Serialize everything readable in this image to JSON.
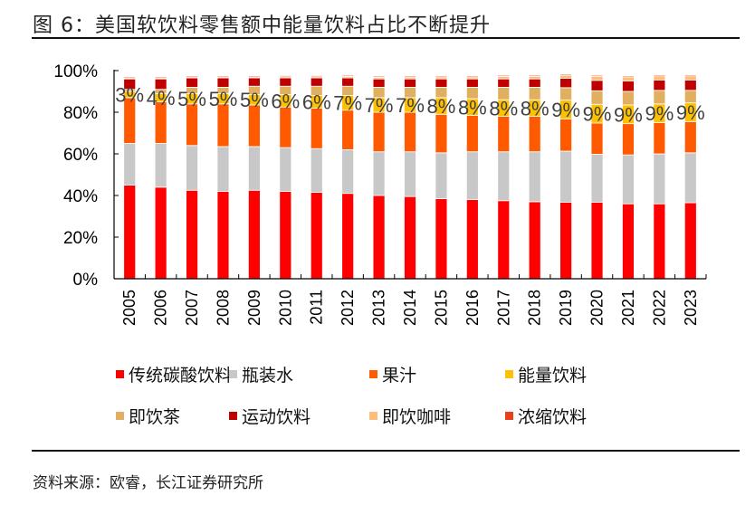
{
  "figure": {
    "title": "图 6：美国软饮料零售额中能量饮料占比不断提升",
    "source": "资料来源：欧睿，长江证券研究所"
  },
  "chart_data": {
    "type": "bar",
    "stacked": true,
    "title": "图 6：美国软饮料零售额中能量饮料占比不断提升",
    "xlabel": "",
    "ylabel": "",
    "ylim": [
      0,
      100
    ],
    "yticks": [
      "0%",
      "20%",
      "40%",
      "60%",
      "80%",
      "100%"
    ],
    "grid": false,
    "legend_position": "bottom",
    "categories": [
      "2005",
      "2006",
      "2007",
      "2008",
      "2009",
      "2010",
      "2011",
      "2012",
      "2013",
      "2014",
      "2015",
      "2016",
      "2017",
      "2018",
      "2019",
      "2020",
      "2021",
      "2022",
      "2023"
    ],
    "series": [
      {
        "name": "传统碳酸饮料",
        "color": "#FF0000",
        "values": [
          45,
          44,
          42.5,
          42,
          42.5,
          42,
          41.5,
          41,
          40,
          39.5,
          38.5,
          38,
          37.5,
          37,
          36.8,
          36.8,
          36,
          36,
          36.5
        ]
      },
      {
        "name": "瓶装水",
        "color": "#C8C8C8",
        "values": [
          20,
          21,
          21.5,
          21.5,
          21,
          21,
          21,
          21,
          21,
          21.5,
          22,
          23,
          23.5,
          24,
          24.5,
          23,
          23.5,
          24,
          24
        ]
      },
      {
        "name": "果汁",
        "color": "#FF5A00",
        "values": [
          22,
          20,
          20,
          20.5,
          20,
          19.5,
          19.5,
          19,
          19,
          19,
          18.5,
          17.5,
          17,
          17,
          15.5,
          15,
          15,
          15,
          15
        ]
      },
      {
        "name": "能量饮料",
        "color": "#FFC000",
        "values": [
          3,
          4,
          5,
          5,
          5,
          6,
          6,
          7,
          7,
          7,
          8,
          8,
          8,
          8,
          9,
          9,
          9,
          9,
          9
        ]
      },
      {
        "name": "即饮茶",
        "color": "#E0B060",
        "values": [
          1,
          2,
          3,
          3,
          4,
          4,
          4.5,
          4.5,
          5,
          5,
          5,
          5.5,
          6,
          6,
          6,
          6.5,
          6.5,
          6.5,
          6
        ]
      },
      {
        "name": "运动饮料",
        "color": "#C00000",
        "values": [
          5,
          5,
          4.5,
          4.5,
          4,
          4,
          4,
          4,
          4,
          4,
          4,
          4,
          4,
          4,
          4.5,
          5,
          5,
          5,
          5
        ]
      },
      {
        "name": "即饮咖啡",
        "color": "#FFBE78",
        "values": [
          0.5,
          0.5,
          0.5,
          0.5,
          0.5,
          0.6,
          0.6,
          0.7,
          0.8,
          0.9,
          1,
          1,
          1.2,
          1.3,
          1.5,
          2,
          2,
          2,
          2
        ]
      },
      {
        "name": "浓缩饮料",
        "color": "#E8401C",
        "values": [
          0.5,
          0.5,
          0.5,
          0.5,
          0.5,
          0.5,
          0.5,
          0.5,
          0.5,
          0.5,
          0.5,
          0.5,
          0.5,
          0.5,
          0.5,
          0.5,
          0.5,
          0.5,
          0.5
        ]
      }
    ],
    "data_labels": {
      "series": "能量饮料",
      "labels": [
        "3%",
        "4%",
        "5%",
        "5%",
        "5%",
        "6%",
        "6%",
        "7%",
        "7%",
        "7%",
        "8%",
        "8%",
        "8%",
        "8%",
        "9%",
        "9%",
        "9%",
        "9%",
        "9%"
      ]
    }
  }
}
